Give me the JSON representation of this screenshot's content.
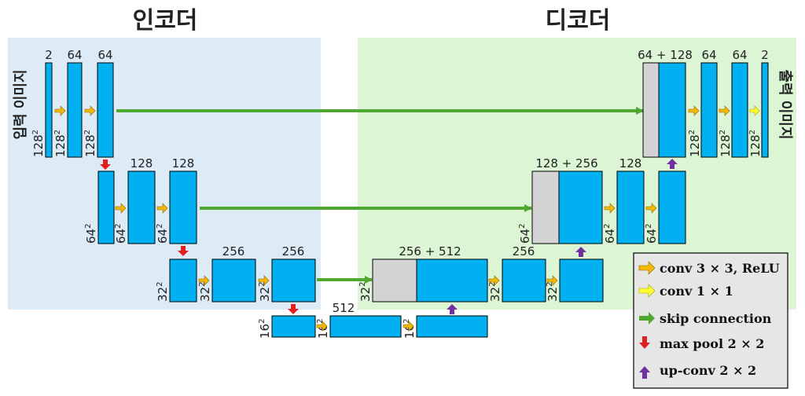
{
  "headings": {
    "encoder": "인코더",
    "decoder": "디코더"
  },
  "side_labels": {
    "input": "입력 이미지",
    "output": "출력 이미지"
  },
  "colors": {
    "block": "#00b0f0",
    "concat_block": "#d3d3d3",
    "encoder_bg": "#ddebf7",
    "decoder_bg": "#dcf6d5",
    "conv3": "#f5b800",
    "conv1": "#ffff33",
    "skip": "#4ea72e",
    "maxpool": "#e02020",
    "upconv": "#7030a0"
  },
  "channels": {
    "in": "2",
    "e1a": "64",
    "e1b": "64",
    "e2a": "128",
    "e2b": "128",
    "e3a": "256",
    "e3b": "256",
    "bott": "512",
    "d3cat": "256 + 512",
    "d3a": "256",
    "d2cat": "128 + 256",
    "d2a": "128",
    "d1cat": "64 + 128",
    "d1a": "64",
    "d1b": "64",
    "out": "2"
  },
  "sizes": {
    "s128": "128",
    "s64": "64",
    "s32": "32",
    "s16": "16",
    "exp": "2"
  },
  "legend": {
    "items": [
      {
        "icon": "conv3",
        "label": "conv 3 × 3, ReLU"
      },
      {
        "icon": "conv1",
        "label": "conv 1 × 1"
      },
      {
        "icon": "skip",
        "label": "skip connection"
      },
      {
        "icon": "maxpool",
        "label": "max pool 2 × 2"
      },
      {
        "icon": "upconv",
        "label": "up-conv 2 × 2"
      }
    ]
  }
}
